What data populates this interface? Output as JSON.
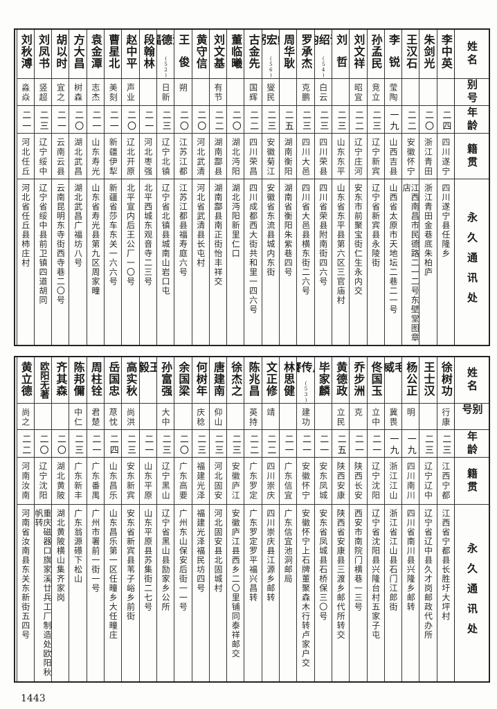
{
  "headers": {
    "name": "姓名",
    "alias": "别号",
    "age": "年龄",
    "native": "籍贯",
    "address": "永久通讯处"
  },
  "page_number": "1443",
  "tables": [
    {
      "rows": [
        {
          "name": "李中英",
          "note": "",
          "alias": "",
          "age": "二四",
          "native": "四川遂宁",
          "address": "四川遂宁县任隆乡"
        },
        {
          "name": "朱剑光",
          "note": "",
          "alias": "",
          "age": "二〇",
          "native": "浙江青田",
          "address": "浙江青田金巷底朱柏庐"
        },
        {
          "name": "王汉石",
          "note": "",
          "alias": "",
          "age": "二二",
          "native": "安徽怀宁",
          "address": "江西南昌市民德路二一二号东壁堂图章店"
        },
        {
          "name": "李锐",
          "note": "",
          "alias": "莹陶",
          "age": "一九",
          "native": "山西吉县",
          "address": "山西省太原市天地坛二巷二一号"
        },
        {
          "name": "孙孟民",
          "note": "",
          "alias": "竞立",
          "age": "二三",
          "native": "辽宁新宾",
          "address": "辽宁省新宾县永陵街"
        },
        {
          "name": "刘文祥",
          "note": "",
          "alias": "昭宜",
          "age": "二二",
          "native": "辽宁庄河",
          "address": "安东市前聚宝街仁生永内交"
        },
        {
          "name": "刘哲",
          "note": "",
          "alias": "",
          "age": "二三",
          "native": "山东东平",
          "address": "山东省东平县第六区三官庙村"
        },
        {
          "name": "谢绍钧",
          "note": "(54)",
          "alias": "白云",
          "age": "二三",
          "native": "四川荣县",
          "address": "四川省荣县附南街四六号"
        },
        {
          "name": "罗承杰",
          "note": "",
          "alias": "克鹏",
          "age": "二三",
          "native": "四川大邑",
          "address": "四川省大邑县横东街二六号"
        },
        {
          "name": "周华耿",
          "note": "",
          "alias": "",
          "age": "二五",
          "native": "湖南衡阳",
          "address": "湖南省衡阳朱紫巷四号"
        },
        {
          "name": "鲍宏粥",
          "note": "(56)",
          "alias": "燮民",
          "age": "二三",
          "native": "安徽菊江",
          "address": "安徽省东流县城内东街"
        },
        {
          "name": "古金先",
          "note": "",
          "alias": "国辉",
          "age": "二二",
          "native": "四川荣昌",
          "address": "四川成都西大街共和里一四六号"
        },
        {
          "name": "董临曦",
          "note": "",
          "alias": "",
          "age": "二〇",
          "native": "湖北沔阳",
          "address": "湖北沔阳新里仁口"
        },
        {
          "name": "刘文基",
          "note": "",
          "alias": "有节",
          "age": "二二",
          "native": "湖南酃县",
          "address": "湖南酃县南正街怡丰祥交"
        },
        {
          "name": "黄守信",
          "note": "",
          "alias": "",
          "age": "二〇",
          "native": "河北武清",
          "address": "河北省武清县长屯村"
        },
        {
          "name": "王俊",
          "note": "",
          "alias": "朔",
          "age": "二〇",
          "native": "江苏江都",
          "address": "江苏江都县福寿庭六号"
        },
        {
          "name": "汪德福",
          "note": "(52)",
          "alias": "日新",
          "age": "二三",
          "native": "辽宁北镇",
          "address": "辽宁省北镇县城南山岩口屯"
        },
        {
          "name": "段翰林",
          "note": "",
          "alias": "",
          "age": "二一",
          "native": "河北枣强",
          "address": "北平西城东观音寺二三号"
        },
        {
          "name": "赵中平",
          "note": "",
          "alias": "声业",
          "age": "二〇",
          "native": "辽北开原",
          "address": "北平宣内后王公厂一〇号"
        },
        {
          "name": "曹星北",
          "note": "",
          "alias": "美刻",
          "age": "二一",
          "native": "新疆伊犁",
          "address": "新疆省莎车东关一六六号"
        },
        {
          "name": "袁金潭",
          "note": "",
          "alias": "志杰",
          "age": "二一",
          "native": "山东寿光",
          "address": "山东省寿光县第九区周家疃"
        },
        {
          "name": "方大昌",
          "note": "",
          "alias": "树森",
          "age": "二〇",
          "native": "湖北武昌",
          "address": "湖北武昌广福坊八号"
        },
        {
          "name": "胡以时",
          "note": "",
          "alias": "宜之",
          "age": "二一",
          "native": "云南云县",
          "address": "云南昆明东寺街西寺巷二〇号"
        },
        {
          "name": "刘凤书",
          "note": "",
          "alias": "竖超",
          "age": "二三",
          "native": "辽宁绥中",
          "address": "辽宁省绥中县前卫镇四道胡同"
        },
        {
          "name": "刘秋溥",
          "note": "",
          "alias": "淼焱",
          "age": "二一",
          "native": "河北任丘",
          "address": "河北省任丘县柿庄村"
        }
      ]
    },
    {
      "rows": [
        {
          "name": "徐树功",
          "note": "",
          "alias": "行康",
          "age": "二三",
          "native": "江西宁都",
          "address": "江西省宁都县长胜圩大坪村"
        },
        {
          "name": "王士汉",
          "note": "",
          "alias": "",
          "age": "二三",
          "native": "辽宁辽中",
          "address": "辽宁省辽中县久才岗邮政代办所"
        },
        {
          "name": "杨公正",
          "note": "",
          "alias": "明",
          "age": "一九",
          "native": "四川南川",
          "address": "四川省南川县兴隆乡邮转"
        },
        {
          "name": "毛威",
          "note": "",
          "alias": "冀畏",
          "age": "一九",
          "native": "浙江江山",
          "address": "浙江省江山县石门江郎街"
        },
        {
          "name": "佟国玉",
          "note": "",
          "alias": "立中",
          "age": "二一",
          "native": "辽宁沈阳",
          "address": "辽宁省沈阳县兴隆台村五家子屯"
        },
        {
          "name": "乔步洲",
          "note": "",
          "alias": "克",
          "age": "二一",
          "native": "陕西长安",
          "address": "西安市南院门横巷一三号"
        },
        {
          "name": "黄德政",
          "note": "",
          "alias": "立民",
          "age": "二五",
          "native": "陕西安康",
          "address": "陕西省安康县三渡乡邮代所转交"
        },
        {
          "name": "毕家麟",
          "note": "",
          "alias": "",
          "age": "二一",
          "native": "安东凤城",
          "address": "安东省凤城县石桥保三〇号"
        },
        {
          "name": "卢传謇",
          "note": "(53)",
          "alias": "建功",
          "age": "二一",
          "native": "安徽怀宁",
          "address": "安徽怀宁上石牌董聚森木行转卢家户交"
        },
        {
          "name": "林思健",
          "note": "",
          "alias": "",
          "age": "二一",
          "native": "广东信宜",
          "address": "广东信宜池洞邮局"
        },
        {
          "name": "文正修",
          "note": "",
          "alias": "靖",
          "age": "二二",
          "native": "四川崇庆",
          "address": "四川崇庆县江源乡邮转"
        },
        {
          "name": "陈兆昌",
          "note": "",
          "alias": "英持",
          "age": "二二",
          "native": "广东罗定",
          "address": "广东罗定罗平福兴昌转"
        },
        {
          "name": "徐杰之",
          "note": "",
          "alias": "",
          "age": "二三",
          "native": "安徽庐江",
          "address": "安徽庐江县西乡二〇里铺同泰祥邮交"
        },
        {
          "name": "唐建南",
          "note": "",
          "alias": "仰山",
          "age": "二三",
          "native": "河北固安",
          "address": "河北固安县北固城村"
        },
        {
          "name": "何树年",
          "note": "",
          "alias": "庆稔",
          "age": "二三",
          "native": "福建光泽",
          "address": "福建光泽福民坊四号"
        },
        {
          "name": "余国梁",
          "note": "",
          "alias": "",
          "age": "二〇",
          "native": "广东高要",
          "address": "广州东山保安后街一一号"
        },
        {
          "name": "孙富强",
          "note": "",
          "alias": "大中",
          "age": "二三",
          "native": "辽宁黑山",
          "address": "辽宁省黑山县励家乡公所"
        },
        {
          "name": "王毅",
          "note": "",
          "alias": "",
          "age": "二一",
          "native": "山东平原",
          "address": "山东平原县苏集街二七号"
        },
        {
          "name": "高实秋",
          "note": "",
          "alias": "尚洪",
          "age": "二三",
          "native": "安东新宾",
          "address": "安东省新宾县苇子峪乡前街"
        },
        {
          "name": "岳国忠",
          "note": "",
          "alias": "荩忱",
          "age": "二四",
          "native": "山东昌乐",
          "address": "山东昌乐第一区任疃乡大任疃庄"
        },
        {
          "name": "周柱铨",
          "note": "",
          "alias": "君楚",
          "age": "二一",
          "native": "广东番禺",
          "address": "广州市署前一街一号"
        },
        {
          "name": "陈邦儞",
          "note": "",
          "alias": "中仁",
          "age": "二三",
          "native": "广东新丰",
          "address": "广东翁源礤下松山"
        },
        {
          "name": "齐其森",
          "note": "",
          "alias": "",
          "age": "二〇",
          "native": "湖北黄陂",
          "address": "湖北黄陂横山集齐家岗"
        },
        {
          "name": "欧阳无著",
          "note": "",
          "alias": "",
          "age": "二〇",
          "native": "辽宁沈阳",
          "address": "重庆磁器口旗家溪廿兵工厂制造处欧阳秋帆转"
        },
        {
          "name": "黄立德",
          "note": "",
          "alias": "尚之",
          "age": "二二",
          "native": "河南汝南",
          "address": "河南省汝南县东关东新街五四号"
        }
      ]
    }
  ]
}
